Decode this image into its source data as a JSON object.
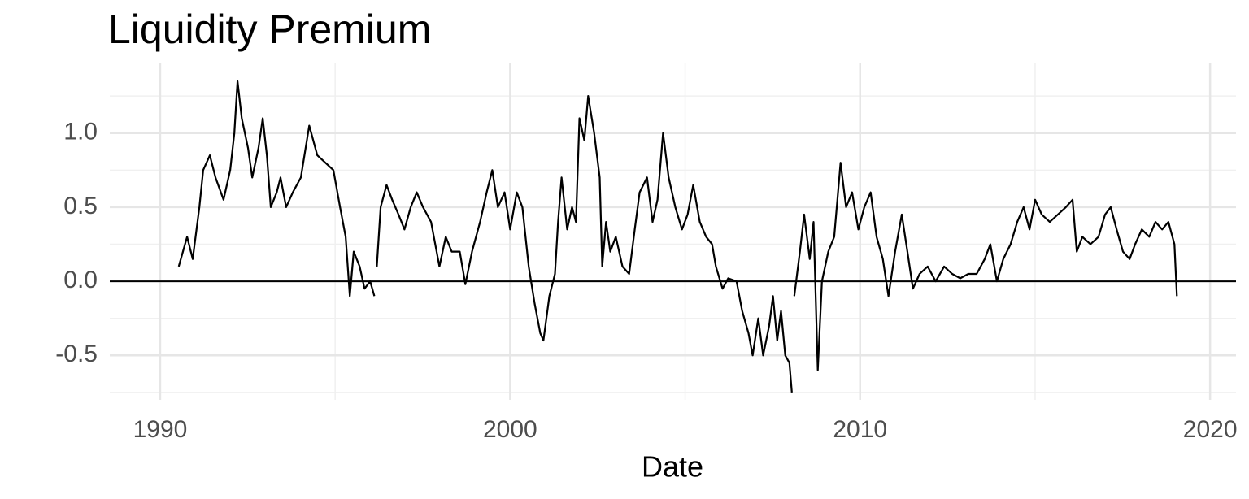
{
  "chart_data": {
    "type": "line",
    "title": "Liquidity Premium",
    "x_label": "Date",
    "x": [
      1990.53,
      1990.77,
      1990.93,
      1991.12,
      1991.23,
      1991.42,
      1991.58,
      1991.81,
      1992.0,
      1992.12,
      1992.21,
      1992.33,
      1992.51,
      1992.63,
      1992.81,
      1992.93,
      1993.05,
      1993.16,
      1993.33,
      1993.44,
      1993.6,
      1993.79,
      1994.02,
      1994.26,
      1994.49,
      1994.72,
      1994.95,
      1995.14,
      1995.3,
      1995.42,
      1995.53,
      1995.7,
      1995.84,
      1996.0,
      1996.12,
      null,
      1996.19,
      1996.3,
      1996.47,
      1996.63,
      1996.81,
      1996.98,
      1997.16,
      1997.33,
      1997.51,
      1997.74,
      1997.98,
      1998.16,
      1998.33,
      1998.56,
      1998.72,
      1998.91,
      1999.14,
      1999.33,
      1999.49,
      1999.65,
      1999.84,
      2000.0,
      2000.19,
      2000.35,
      2000.53,
      2000.7,
      2000.86,
      2000.95,
      2001.12,
      2001.28,
      2001.37,
      2001.47,
      2001.63,
      2001.77,
      2001.88,
      2001.98,
      2002.12,
      2002.23,
      2002.4,
      2002.56,
      2002.63,
      2002.74,
      2002.86,
      2003.02,
      2003.21,
      2003.4,
      2003.56,
      2003.7,
      2003.91,
      2004.07,
      2004.21,
      2004.37,
      2004.53,
      2004.72,
      2004.91,
      2005.07,
      2005.23,
      2005.42,
      2005.6,
      2005.77,
      2005.88,
      2006.07,
      2006.23,
      2006.47,
      2006.63,
      2006.81,
      2006.93,
      2007.09,
      2007.23,
      2007.4,
      2007.51,
      2007.63,
      2007.74,
      2007.86,
      2007.98,
      2008.05,
      null,
      2008.12,
      2008.28,
      2008.4,
      2008.56,
      2008.67,
      2008.79,
      2008.91,
      2009.09,
      2009.26,
      2009.44,
      2009.6,
      2009.77,
      2009.95,
      2010.12,
      2010.3,
      2010.47,
      2010.65,
      2010.81,
      2011.0,
      2011.19,
      2011.35,
      2011.51,
      2011.7,
      2011.93,
      2012.16,
      2012.4,
      2012.63,
      2012.86,
      2013.09,
      2013.33,
      2013.56,
      2013.72,
      2013.91,
      2014.09,
      2014.3,
      2014.49,
      2014.67,
      2014.84,
      2015.0,
      2015.19,
      2015.42,
      2015.65,
      2015.88,
      2016.07,
      2016.19,
      2016.35,
      2016.58,
      2016.81,
      2017.0,
      2017.16,
      2017.33,
      2017.51,
      2017.7,
      2017.86,
      2018.05,
      2018.26,
      2018.44,
      2018.63,
      2018.81,
      2018.98,
      2019.05
    ],
    "series": [
      {
        "color": "#000000",
        "values": [
          0.1,
          0.3,
          0.15,
          0.5,
          0.75,
          0.85,
          0.7,
          0.55,
          0.75,
          1.0,
          1.35,
          1.1,
          0.9,
          0.7,
          0.9,
          1.1,
          0.85,
          0.5,
          0.6,
          0.7,
          0.5,
          0.6,
          0.7,
          1.05,
          0.85,
          0.8,
          0.75,
          0.5,
          0.3,
          -0.1,
          0.2,
          0.1,
          -0.05,
          0.0,
          -0.1,
          null,
          0.1,
          0.5,
          0.65,
          0.55,
          0.45,
          0.35,
          0.5,
          0.6,
          0.5,
          0.4,
          0.1,
          0.3,
          0.2,
          0.2,
          -0.02,
          0.2,
          0.4,
          0.6,
          0.75,
          0.5,
          0.6,
          0.35,
          0.6,
          0.5,
          0.1,
          -0.15,
          -0.35,
          -0.4,
          -0.1,
          0.05,
          0.4,
          0.7,
          0.35,
          0.5,
          0.4,
          1.1,
          0.95,
          1.25,
          1.0,
          0.7,
          0.1,
          0.4,
          0.2,
          0.3,
          0.1,
          0.05,
          0.35,
          0.6,
          0.7,
          0.4,
          0.55,
          1.0,
          0.7,
          0.5,
          0.35,
          0.45,
          0.65,
          0.4,
          0.3,
          0.25,
          0.1,
          -0.05,
          0.02,
          0.0,
          -0.2,
          -0.35,
          -0.5,
          -0.25,
          -0.5,
          -0.3,
          -0.1,
          -0.4,
          -0.2,
          -0.5,
          -0.55,
          -0.75,
          null,
          -0.1,
          0.2,
          0.45,
          0.15,
          0.4,
          -0.6,
          0.0,
          0.2,
          0.3,
          0.8,
          0.5,
          0.6,
          0.35,
          0.5,
          0.6,
          0.3,
          0.15,
          -0.1,
          0.2,
          0.45,
          0.2,
          -0.05,
          0.05,
          0.1,
          0.0,
          0.1,
          0.05,
          0.02,
          0.05,
          0.05,
          0.15,
          0.25,
          0.0,
          0.15,
          0.25,
          0.4,
          0.5,
          0.35,
          0.55,
          0.45,
          0.4,
          0.45,
          0.5,
          0.55,
          0.2,
          0.3,
          0.25,
          0.3,
          0.45,
          0.5,
          0.35,
          0.2,
          0.15,
          0.25,
          0.35,
          0.3,
          0.4,
          0.35,
          0.4,
          0.25,
          -0.1
        ]
      }
    ],
    "xlim": [
      1988.56,
      2020.74
    ],
    "ylim": [
      -0.8,
      1.47
    ],
    "xticks": [
      1990,
      2000,
      2010,
      2020
    ],
    "yticks": [
      {
        "value": -0.5,
        "label": "-0.5"
      },
      {
        "value": 0,
        "label": "0.0"
      },
      {
        "value": 0.5,
        "label": "0.5"
      },
      {
        "value": 1,
        "label": "1.0"
      }
    ],
    "x_minor_ticks": [
      1995,
      2005,
      2015
    ],
    "y_minor_ticks": [
      -0.75,
      -0.25,
      0.25,
      0.75,
      1.25
    ],
    "hline": 0,
    "grid": true
  }
}
